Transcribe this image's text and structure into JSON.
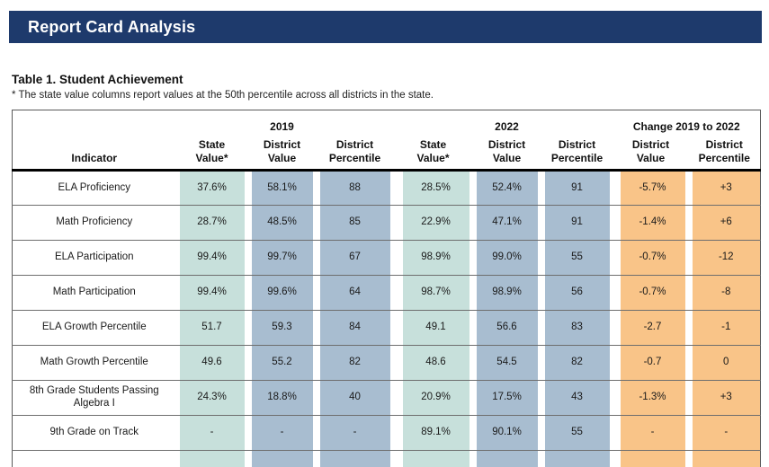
{
  "header_bar": {
    "title": "Report Card Analysis"
  },
  "table_title": "Table 1. Student Achievement",
  "footnote": "* The state value columns report values at the 50th percentile across all districts in the state.",
  "colors": {
    "navy": "#1e3a6c",
    "teal": "#c7e0db",
    "blue": "#a8bdd0",
    "orange": "#f9c488",
    "grid": "#6e6e6e"
  },
  "table": {
    "group_headers": [
      {
        "label": "2019"
      },
      {
        "label": "2022"
      },
      {
        "label": "Change 2019 to 2022"
      }
    ],
    "columns": [
      {
        "label": "Indicator",
        "color": "none"
      },
      {
        "label": "State\nValue*",
        "color": "teal"
      },
      {
        "label": "District\nValue",
        "color": "blue"
      },
      {
        "label": "District\nPercentile",
        "color": "blue"
      },
      {
        "label": "State\nValue*",
        "color": "teal"
      },
      {
        "label": "District\nValue",
        "color": "blue"
      },
      {
        "label": "District\nPercentile",
        "color": "blue"
      },
      {
        "label": "District\nValue",
        "color": "orange"
      },
      {
        "label": "District\nPercentile",
        "color": "orange"
      }
    ],
    "rows": [
      [
        "ELA Proficiency",
        "37.6%",
        "58.1%",
        "88",
        "28.5%",
        "52.4%",
        "91",
        "-5.7%",
        "+3"
      ],
      [
        "Math Proficiency",
        "28.7%",
        "48.5%",
        "85",
        "22.9%",
        "47.1%",
        "91",
        "-1.4%",
        "+6"
      ],
      [
        "ELA Participation",
        "99.4%",
        "99.7%",
        "67",
        "98.9%",
        "99.0%",
        "55",
        "-0.7%",
        "-12"
      ],
      [
        "Math Participation",
        "99.4%",
        "99.6%",
        "64",
        "98.7%",
        "98.9%",
        "56",
        "-0.7%",
        "-8"
      ],
      [
        "ELA Growth Percentile",
        "51.7",
        "59.3",
        "84",
        "49.1",
        "56.6",
        "83",
        "-2.7",
        "-1"
      ],
      [
        "Math Growth Percentile",
        "49.6",
        "55.2",
        "82",
        "48.6",
        "54.5",
        "82",
        "-0.7",
        "0"
      ],
      [
        "8th Grade Students Passing Algebra I",
        "24.3%",
        "18.8%",
        "40",
        "20.9%",
        "17.5%",
        "43",
        "-1.3%",
        "+3"
      ],
      [
        "9th Grade on Track",
        "-",
        "-",
        "-",
        "89.1%",
        "90.1%",
        "55",
        "-",
        "-"
      ],
      [
        "",
        "",
        "",
        "",
        "",
        "",
        "",
        "",
        ""
      ]
    ]
  }
}
